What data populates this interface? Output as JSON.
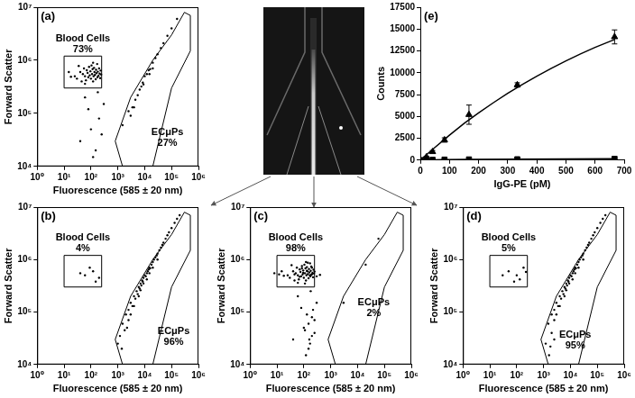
{
  "chart_data": [
    {
      "type": "scatter",
      "title": "(a)",
      "x_label": "Fluorescence (585 ± 20 nm)",
      "y_label": "Forward Scatter",
      "log": true,
      "grid": false,
      "color": "#000000",
      "marker": "point",
      "xlim": [
        1,
        1000000
      ],
      "ylim": [
        10000,
        10000000
      ],
      "xticks": [
        {
          "value": 1,
          "label": "10⁰"
        },
        {
          "value": 10,
          "label": "10¹"
        },
        {
          "value": 100,
          "label": "10²"
        },
        {
          "value": 1000,
          "label": "10³"
        },
        {
          "value": 10000,
          "label": "10⁴"
        },
        {
          "value": 100000,
          "label": "10⁵"
        },
        {
          "value": 1000000,
          "label": "10⁶"
        }
      ],
      "yticks": [
        {
          "value": 10000,
          "label": "10⁴"
        },
        {
          "value": 100000,
          "label": "10⁵"
        },
        {
          "value": 1000000,
          "label": "10⁶"
        },
        {
          "value": 10000000,
          "label": "10⁷"
        }
      ],
      "x": [
        25,
        30,
        40,
        45,
        50,
        55,
        60,
        65,
        70,
        75,
        80,
        85,
        90,
        95,
        100,
        105,
        110,
        115,
        120,
        125,
        130,
        135,
        140,
        150,
        155,
        160,
        170,
        175,
        180,
        190,
        200,
        210,
        220,
        230,
        15,
        35,
        120,
        60,
        240,
        18,
        40,
        100,
        150,
        200,
        300,
        80,
        250,
        60,
        180,
        120,
        1500,
        2500,
        3500,
        4500,
        5500,
        6500,
        7500,
        8500,
        10000,
        12000,
        14000,
        16000,
        20000,
        25000,
        30000,
        40000,
        50000,
        70000,
        100000,
        160000,
        4000,
        9000,
        20000,
        3000,
        15000
      ],
      "y": [
        500000,
        450000,
        600000,
        400000,
        550000,
        700000,
        500000,
        420000,
        650000,
        580000,
        480000,
        750000,
        520000,
        620000,
        450000,
        800000,
        550000,
        680000,
        400000,
        500000,
        720000,
        600000,
        530000,
        440000,
        660000,
        570000,
        850000,
        480000,
        610000,
        510000,
        700000,
        560000,
        460000,
        640000,
        600000,
        780000,
        900000,
        360000,
        540000,
        490000,
        30000,
        50000,
        20000,
        80000,
        150000,
        120000,
        40000,
        200000,
        250000,
        15000,
        60000,
        110000,
        130000,
        180000,
        220000,
        280000,
        320000,
        380000,
        500000,
        550000,
        650000,
        680000,
        900000,
        1100000,
        1300000,
        1700000,
        2100000,
        2900000,
        4000000,
        6000000,
        130000,
        350000,
        700000,
        90000,
        550000
      ],
      "gates": [
        {
          "name": "Blood Cells",
          "value": 73,
          "value_label": "73%",
          "x": [
            10,
            250,
            250,
            10
          ],
          "y": [
            300000,
            300000,
            1200000,
            1200000
          ]
        },
        {
          "name": "ECμPs",
          "value": 27,
          "value_label": "27%",
          "x": [
            800,
            1500,
            20000,
            100000,
            500000,
            500000,
            300000,
            100000,
            20000,
            3000
          ],
          "y": [
            30000,
            10000,
            10000,
            300000,
            1500000,
            7000000,
            8000000,
            3000000,
            1000000,
            200000
          ]
        }
      ]
    },
    {
      "type": "scatter",
      "title": "(b)",
      "x_label": "Fluorescence (585 ± 20 nm)",
      "y_label": "Forward Scatter",
      "log": true,
      "grid": false,
      "color": "#000000",
      "marker": "point",
      "xlim": [
        1,
        1000000
      ],
      "ylim": [
        10000,
        10000000
      ],
      "xticks": [
        {
          "value": 1,
          "label": "10⁰"
        },
        {
          "value": 10,
          "label": "10¹"
        },
        {
          "value": 100,
          "label": "10²"
        },
        {
          "value": 1000,
          "label": "10³"
        },
        {
          "value": 10000,
          "label": "10⁴"
        },
        {
          "value": 100000,
          "label": "10⁵"
        },
        {
          "value": 1000000,
          "label": "10⁶"
        }
      ],
      "yticks": [
        {
          "value": 10000,
          "label": "10⁴"
        },
        {
          "value": 100000,
          "label": "10⁵"
        },
        {
          "value": 1000000,
          "label": "10⁶"
        },
        {
          "value": 10000000,
          "label": "10⁷"
        }
      ],
      "x": [
        40,
        60,
        90,
        120,
        150,
        200,
        1500,
        2000,
        2500,
        3000,
        3500,
        4000,
        4500,
        5000,
        5500,
        6000,
        6500,
        7000,
        7500,
        8000,
        8500,
        9000,
        10000,
        11000,
        12000,
        13000,
        14000,
        15000,
        16000,
        18000,
        20000,
        22000,
        25000,
        28000,
        30000,
        35000,
        40000,
        45000,
        50000,
        60000,
        70000,
        80000,
        100000,
        130000,
        160000,
        200000,
        2500,
        4000,
        6000,
        9000,
        12000,
        20000,
        30000,
        3000,
        7000,
        15000,
        1000,
        1200,
        1800,
        2200,
        1400
      ],
      "y": [
        550000,
        500000,
        700000,
        600000,
        380000,
        450000,
        60000,
        90000,
        110000,
        150000,
        130000,
        200000,
        180000,
        250000,
        220000,
        300000,
        280000,
        350000,
        320000,
        400000,
        380000,
        450000,
        500000,
        480000,
        550000,
        600000,
        650000,
        700000,
        680000,
        800000,
        900000,
        1000000,
        1100000,
        1200000,
        1300000,
        1500000,
        1700000,
        1900000,
        2100000,
        2500000,
        2900000,
        3300000,
        4000000,
        5000000,
        6000000,
        7000000,
        70000,
        130000,
        200000,
        350000,
        420000,
        700000,
        1000000,
        90000,
        260000,
        550000,
        25000,
        35000,
        45000,
        50000,
        20000
      ],
      "gates": [
        {
          "name": "Blood Cells",
          "value": 4,
          "value_label": "4%",
          "x": [
            10,
            250,
            250,
            10
          ],
          "y": [
            300000,
            300000,
            1200000,
            1200000
          ]
        },
        {
          "name": "ECμPs",
          "value": 96,
          "value_label": "96%",
          "x": [
            800,
            1500,
            20000,
            100000,
            500000,
            500000,
            300000,
            100000,
            20000,
            3000
          ],
          "y": [
            30000,
            10000,
            10000,
            300000,
            1500000,
            7000000,
            8000000,
            3000000,
            1000000,
            200000
          ]
        }
      ]
    },
    {
      "type": "scatter",
      "title": "(c)",
      "x_label": "Fluorescence (585 ± 20 nm)",
      "y_label": "Forward Scatter",
      "log": true,
      "grid": false,
      "color": "#000000",
      "marker": "point",
      "xlim": [
        1,
        1000000
      ],
      "ylim": [
        10000,
        10000000
      ],
      "xticks": [
        {
          "value": 1,
          "label": "10⁰"
        },
        {
          "value": 10,
          "label": "10¹"
        },
        {
          "value": 100,
          "label": "10²"
        },
        {
          "value": 1000,
          "label": "10³"
        },
        {
          "value": 10000,
          "label": "10⁴"
        },
        {
          "value": 100000,
          "label": "10⁵"
        },
        {
          "value": 1000000,
          "label": "10⁶"
        }
      ],
      "yticks": [
        {
          "value": 10000,
          "label": "10⁴"
        },
        {
          "value": 100000,
          "label": "10⁵"
        },
        {
          "value": 1000000,
          "label": "10⁶"
        },
        {
          "value": 10000000,
          "label": "10⁷"
        }
      ],
      "x": [
        25,
        30,
        40,
        45,
        50,
        55,
        60,
        65,
        70,
        75,
        80,
        85,
        90,
        95,
        100,
        105,
        110,
        115,
        120,
        125,
        130,
        135,
        140,
        150,
        155,
        160,
        170,
        175,
        180,
        190,
        200,
        210,
        220,
        230,
        15,
        35,
        120,
        60,
        240,
        18,
        45,
        70,
        95,
        130,
        165,
        200,
        250,
        300,
        400,
        8,
        12,
        140,
        110,
        85,
        190,
        40,
        100,
        150,
        200,
        300,
        80,
        250,
        60,
        180,
        120,
        150,
        200,
        130,
        170,
        220,
        110,
        250,
        160,
        3000,
        20000,
        60000
      ],
      "y": [
        500000,
        450000,
        600000,
        400000,
        550000,
        700000,
        500000,
        420000,
        650000,
        580000,
        480000,
        750000,
        520000,
        620000,
        450000,
        800000,
        550000,
        680000,
        400000,
        500000,
        720000,
        600000,
        530000,
        440000,
        660000,
        570000,
        850000,
        480000,
        610000,
        510000,
        700000,
        560000,
        460000,
        640000,
        600000,
        780000,
        900000,
        360000,
        540000,
        490000,
        520000,
        470000,
        560000,
        610000,
        500000,
        530000,
        590000,
        480000,
        510000,
        550000,
        520000,
        870000,
        350000,
        680000,
        740000,
        30000,
        50000,
        20000,
        80000,
        150000,
        120000,
        40000,
        200000,
        250000,
        15000,
        60000,
        35000,
        90000,
        25000,
        110000,
        45000,
        70000,
        30000,
        150000,
        800000,
        2500000
      ],
      "gates": [
        {
          "name": "Blood Cells",
          "value": 98,
          "value_label": "98%",
          "x": [
            10,
            250,
            250,
            10
          ],
          "y": [
            300000,
            300000,
            1200000,
            1200000
          ]
        },
        {
          "name": "ECμPs",
          "value": 2,
          "value_label": "2%",
          "x": [
            800,
            1500,
            20000,
            100000,
            500000,
            500000,
            300000,
            100000,
            20000,
            3000
          ],
          "y": [
            30000,
            10000,
            10000,
            300000,
            1500000,
            7000000,
            8000000,
            3000000,
            1000000,
            200000
          ]
        }
      ]
    },
    {
      "type": "scatter",
      "title": "(d)",
      "x_label": "Fluorescence (585 ± 20 nm)",
      "y_label": "Forward Scatter",
      "log": true,
      "grid": false,
      "color": "#000000",
      "marker": "point",
      "xlim": [
        1,
        1000000
      ],
      "ylim": [
        10000,
        10000000
      ],
      "xticks": [
        {
          "value": 1,
          "label": "10⁰"
        },
        {
          "value": 10,
          "label": "10¹"
        },
        {
          "value": 100,
          "label": "10²"
        },
        {
          "value": 1000,
          "label": "10³"
        },
        {
          "value": 10000,
          "label": "10⁴"
        },
        {
          "value": 100000,
          "label": "10⁵"
        },
        {
          "value": 1000000,
          "label": "10⁶"
        }
      ],
      "yticks": [
        {
          "value": 10000,
          "label": "10⁴"
        },
        {
          "value": 100000,
          "label": "10⁵"
        },
        {
          "value": 1000000,
          "label": "10⁶"
        },
        {
          "value": 10000000,
          "label": "10⁷"
        }
      ],
      "x": [
        30,
        50,
        80,
        100,
        130,
        180,
        220,
        1500,
        2000,
        2500,
        3000,
        3500,
        4000,
        4500,
        5000,
        5500,
        6000,
        6500,
        7000,
        7500,
        8000,
        8500,
        9000,
        10000,
        11000,
        12000,
        13000,
        14000,
        15000,
        16000,
        18000,
        20000,
        22000,
        25000,
        28000,
        30000,
        35000,
        40000,
        45000,
        50000,
        60000,
        70000,
        80000,
        100000,
        130000,
        160000,
        200000,
        2500,
        4000,
        6000,
        9000,
        12000,
        20000,
        30000,
        3000,
        7000,
        15000,
        1600,
        2500,
        1200,
        2000,
        1800
      ],
      "y": [
        500000,
        600000,
        380000,
        500000,
        420000,
        700000,
        580000,
        60000,
        90000,
        110000,
        150000,
        130000,
        200000,
        180000,
        250000,
        220000,
        300000,
        280000,
        350000,
        320000,
        400000,
        380000,
        450000,
        500000,
        480000,
        550000,
        600000,
        650000,
        700000,
        680000,
        800000,
        900000,
        1000000,
        1100000,
        1200000,
        1300000,
        1500000,
        1700000,
        1900000,
        2100000,
        2500000,
        2900000,
        3300000,
        4000000,
        5000000,
        6000000,
        7000000,
        70000,
        130000,
        200000,
        350000,
        420000,
        700000,
        1000000,
        90000,
        260000,
        550000,
        15000,
        30000,
        25000,
        40000,
        22000
      ],
      "gates": [
        {
          "name": "Blood Cells",
          "value": 5,
          "value_label": "5%",
          "x": [
            10,
            250,
            250,
            10
          ],
          "y": [
            300000,
            300000,
            1200000,
            1200000
          ]
        },
        {
          "name": "ECμPs",
          "value": 95,
          "value_label": "95%",
          "x": [
            800,
            1500,
            20000,
            100000,
            500000,
            500000,
            300000,
            100000,
            20000,
            3000
          ],
          "y": [
            30000,
            10000,
            10000,
            300000,
            1500000,
            7000000,
            8000000,
            3000000,
            1000000,
            200000
          ]
        }
      ]
    },
    {
      "type": "line",
      "title": "(e)",
      "x_label": "IgG-PE (pM)",
      "y_label": "Counts",
      "grid": false,
      "xlim": [
        0,
        700
      ],
      "ylim": [
        0,
        17500
      ],
      "xticks": [
        0,
        100,
        200,
        300,
        400,
        500,
        600,
        700
      ],
      "yticks": [
        0,
        2500,
        5000,
        7500,
        10000,
        12500,
        15000,
        17500
      ],
      "series": [
        {
          "type": "line",
          "color": "#000000",
          "line_style": "solid",
          "x": [
            0,
            50,
            100,
            150,
            200,
            250,
            300,
            350,
            400,
            450,
            500,
            550,
            600,
            667
          ],
          "values": [
            0,
            1450,
            2850,
            4200,
            5400,
            6550,
            7650,
            8650,
            9600,
            10500,
            11350,
            12150,
            12900,
            13800
          ]
        },
        {
          "type": "scatter",
          "color": "#000000",
          "marker": "triangle",
          "x": [
            0,
            21,
            42,
            83,
            167,
            333,
            667
          ],
          "values": [
            0,
            350,
            950,
            2300,
            5200,
            8600,
            14100
          ],
          "errors": [
            0,
            100,
            150,
            250,
            1100,
            250,
            800
          ]
        },
        {
          "type": "line",
          "color": "#000000",
          "marker": "square",
          "line_style": "solid",
          "x": [
            0,
            21,
            42,
            83,
            167,
            333,
            667
          ],
          "values": [
            0,
            20,
            40,
            60,
            80,
            100,
            150
          ]
        }
      ]
    }
  ]
}
